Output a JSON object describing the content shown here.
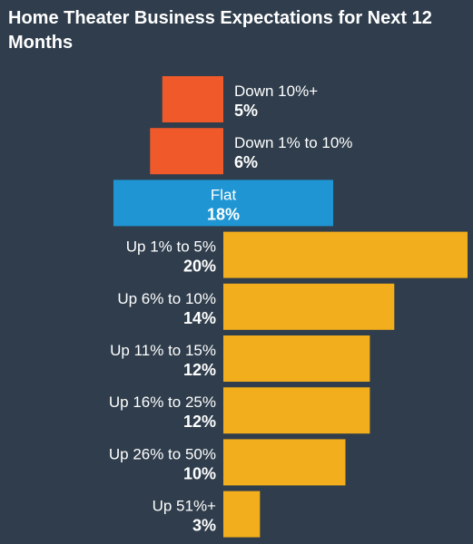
{
  "chart_data": {
    "type": "bar",
    "orientation": "horizontal-diverging",
    "title": "Home Theater Business Expectations for Next 12 Months",
    "categories": [
      "Down 10%+",
      "Down 1% to 10%",
      "Flat",
      "Up 1% to 5%",
      "Up 6% to 10%",
      "Up 11% to 15%",
      "Up 16% to 25%",
      "Up 26% to 50%",
      "Up 51%+"
    ],
    "values": [
      5,
      6,
      18,
      20,
      14,
      12,
      12,
      10,
      3
    ],
    "value_labels": [
      "5%",
      "6%",
      "18%",
      "20%",
      "14%",
      "12%",
      "12%",
      "10%",
      "3%"
    ],
    "direction": [
      "down",
      "down",
      "flat",
      "up",
      "up",
      "up",
      "up",
      "up",
      "up"
    ],
    "colors": {
      "down": "#f05a2b",
      "flat": "#1f96d3",
      "up": "#f2ae1c"
    },
    "xlabel": "",
    "ylabel": "",
    "grid": false,
    "legend": "none"
  }
}
